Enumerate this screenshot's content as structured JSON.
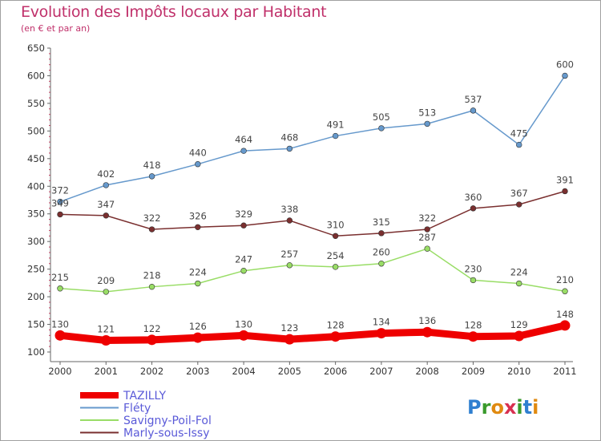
{
  "title": "Evolution des Impôts locaux par Habitant",
  "subtitle": "(en € et par an)",
  "logo": {
    "text": "Proxiti"
  },
  "chart_data": {
    "type": "line",
    "x": [
      "2000",
      "2001",
      "2002",
      "2003",
      "2004",
      "2005",
      "2006",
      "2007",
      "2008",
      "2009",
      "2010",
      "2011"
    ],
    "ylim": [
      100,
      650
    ],
    "yticks": [
      100,
      150,
      200,
      250,
      300,
      350,
      400,
      450,
      500,
      550,
      600,
      650
    ],
    "grid": false,
    "legend_position": "bottom-left",
    "series": [
      {
        "name": "TAZILLY",
        "color": "#ee0000",
        "emphasis": true,
        "values": [
          130,
          121,
          122,
          126,
          130,
          123,
          128,
          134,
          136,
          128,
          129,
          148
        ]
      },
      {
        "name": "Fléty",
        "color": "#6699cc",
        "values": [
          372,
          402,
          418,
          440,
          464,
          468,
          491,
          505,
          513,
          537,
          475,
          600
        ]
      },
      {
        "name": "Savigny-Poil-Fol",
        "color": "#99dd66",
        "values": [
          215,
          209,
          218,
          224,
          247,
          257,
          254,
          260,
          287,
          230,
          224,
          210
        ]
      },
      {
        "name": "Marly-sous-Issy",
        "color": "#7a2f2f",
        "values": [
          349,
          347,
          322,
          326,
          329,
          338,
          310,
          315,
          322,
          360,
          367,
          391
        ]
      }
    ]
  }
}
